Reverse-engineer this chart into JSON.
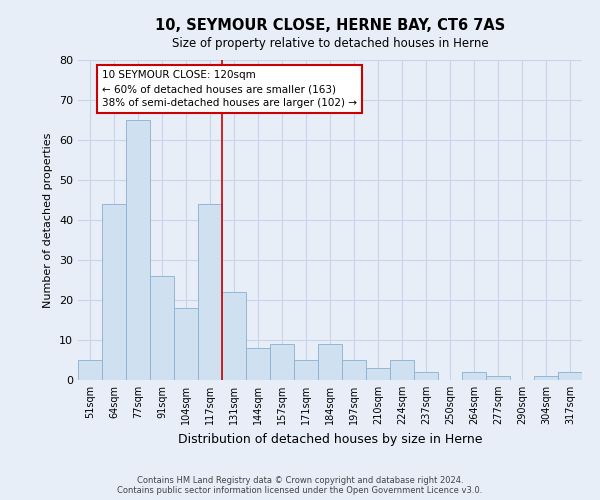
{
  "title": "10, SEYMOUR CLOSE, HERNE BAY, CT6 7AS",
  "subtitle": "Size of property relative to detached houses in Herne",
  "xlabel": "Distribution of detached houses by size in Herne",
  "ylabel": "Number of detached properties",
  "bar_labels": [
    "51sqm",
    "64sqm",
    "77sqm",
    "91sqm",
    "104sqm",
    "117sqm",
    "131sqm",
    "144sqm",
    "157sqm",
    "171sqm",
    "184sqm",
    "197sqm",
    "210sqm",
    "224sqm",
    "237sqm",
    "250sqm",
    "264sqm",
    "277sqm",
    "290sqm",
    "304sqm",
    "317sqm"
  ],
  "bar_values": [
    5,
    44,
    65,
    26,
    18,
    44,
    22,
    8,
    9,
    5,
    9,
    5,
    3,
    5,
    2,
    0,
    2,
    1,
    0,
    1,
    2
  ],
  "bar_color": "#cfe0f0",
  "bar_edge_color": "#8ab0d0",
  "grid_color": "#c8d4e8",
  "background_color": "#e8eef8",
  "vline_x": 5.5,
  "vline_color": "#cc0000",
  "annotation_title": "10 SEYMOUR CLOSE: 120sqm",
  "annotation_line1": "← 60% of detached houses are smaller (163)",
  "annotation_line2": "38% of semi-detached houses are larger (102) →",
  "annotation_box_color": "#ffffff",
  "annotation_box_edge": "#cc0000",
  "ylim": [
    0,
    80
  ],
  "yticks": [
    0,
    10,
    20,
    30,
    40,
    50,
    60,
    70,
    80
  ],
  "footer_line1": "Contains HM Land Registry data © Crown copyright and database right 2024.",
  "footer_line2": "Contains public sector information licensed under the Open Government Licence v3.0."
}
